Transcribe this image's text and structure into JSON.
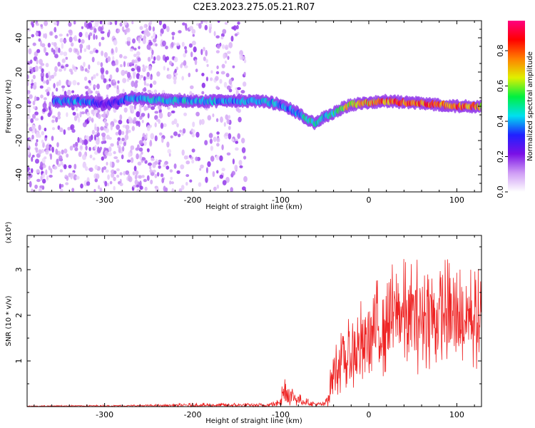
{
  "title": "C2E3.2023.275.05.21.R07",
  "chart_data": [
    {
      "type": "heatmap",
      "name": "spectrogram",
      "xlabel": "Height of straight line (km)",
      "ylabel": "Frequency (Hz)",
      "xlim": [
        -388,
        128
      ],
      "ylim": [
        -50,
        50
      ],
      "xticks": [
        -300,
        -200,
        -100,
        0,
        100
      ],
      "xtick_labels": [
        "-300",
        "-200",
        "-100",
        "0",
        "100"
      ],
      "yticks": [
        -40,
        -20,
        0,
        20,
        40
      ],
      "ytick_labels": [
        "-40",
        "-20",
        "0",
        "20",
        "40"
      ],
      "colorbar": {
        "label": "Normalized spectral amplitude",
        "range": [
          0,
          0.97
        ],
        "ticks": [
          0.0,
          0.2,
          0.4,
          0.6,
          0.8
        ],
        "tick_labels": [
          "0.0",
          "0.2",
          "0.4",
          "0.6",
          "0.8"
        ],
        "colors": [
          "#ffffff",
          "#cf9cf5",
          "#7a10e6",
          "#2020ff",
          "#00e0f0",
          "#00f040",
          "#e0f000",
          "#ff8000",
          "#ff0000",
          "#ff0080"
        ]
      },
      "ridge": {
        "x": [
          -380,
          -350,
          -320,
          -300,
          -290,
          -270,
          -250,
          -200,
          -150,
          -120,
          -100,
          -80,
          -70,
          -60,
          -50,
          -40,
          -30,
          -20,
          0,
          20,
          50,
          80,
          100,
          128
        ],
        "y": [
          3,
          3,
          3,
          1,
          2,
          5,
          4,
          3,
          3,
          3,
          1,
          -4,
          -8,
          -10,
          -6,
          -4,
          -1,
          1,
          2,
          3,
          2,
          1,
          0,
          0
        ],
        "amplitude": [
          0.3,
          0.45,
          0.45,
          0.25,
          0.35,
          0.45,
          0.5,
          0.5,
          0.45,
          0.5,
          0.45,
          0.45,
          0.55,
          0.55,
          0.5,
          0.55,
          0.7,
          0.8,
          0.85,
          0.9,
          0.9,
          0.9,
          0.9,
          0.85
        ]
      },
      "noise_region_x": [
        -388,
        -140
      ]
    },
    {
      "type": "line",
      "name": "snr",
      "series": [
        {
          "name": "SNR",
          "color": "#ee2222"
        }
      ],
      "xlabel": "Height of straight line (km)",
      "ylabel": "SNR (10 * v/v)",
      "y_multiplier": "(x10⁴)",
      "xlim": [
        -388,
        128
      ],
      "ylim": [
        0,
        3.75
      ],
      "xticks": [
        -300,
        -200,
        -100,
        0,
        100
      ],
      "xtick_labels": [
        "-300",
        "-200",
        "-100",
        "0",
        "100"
      ],
      "yticks": [
        1,
        2,
        3
      ],
      "ytick_labels": [
        "1",
        "2",
        "3"
      ],
      "envelope": {
        "x": [
          -388,
          -250,
          -200,
          -150,
          -120,
          -105,
          -100,
          -95,
          -85,
          -75,
          -60,
          -50,
          -45,
          -40,
          -30,
          -20,
          -10,
          0,
          10,
          20,
          30,
          50,
          70,
          90,
          100,
          110,
          120,
          128
        ],
        "mean": [
          0.01,
          0.02,
          0.03,
          0.03,
          0.03,
          0.06,
          0.25,
          0.35,
          0.2,
          0.12,
          0.05,
          0.05,
          0.3,
          0.8,
          1.0,
          1.1,
          1.3,
          1.5,
          1.7,
          1.8,
          2.0,
          2.0,
          2.0,
          2.0,
          1.9,
          2.0,
          1.9,
          1.9
        ],
        "spread": [
          0.01,
          0.02,
          0.04,
          0.04,
          0.04,
          0.05,
          0.3,
          0.35,
          0.15,
          0.08,
          0.04,
          0.05,
          0.25,
          0.45,
          0.55,
          0.7,
          0.8,
          0.85,
          0.9,
          0.95,
          0.95,
          1.0,
          1.0,
          1.0,
          1.0,
          0.95,
          0.9,
          0.9
        ]
      }
    }
  ]
}
